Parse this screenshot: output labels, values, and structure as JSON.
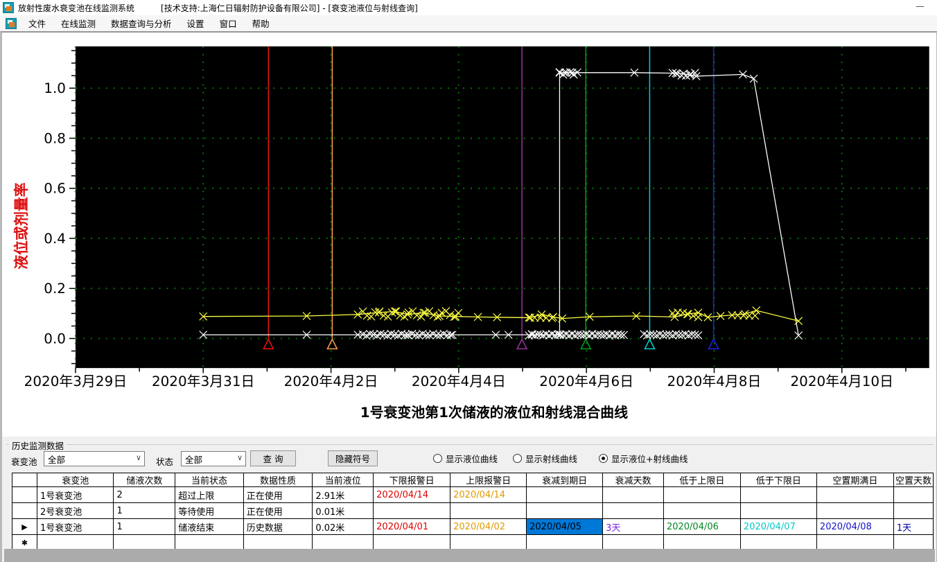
{
  "window": {
    "app_title": "放射性废水衰变池在线监测系统",
    "subtitle": "[技术支持:上海仁日辐射防护设备有限公司] - [衰变池液位与射线查询]",
    "minimize_glyph": "—"
  },
  "menu": {
    "items": [
      "文件",
      "在线监测",
      "数据查询与分析",
      "设置",
      "窗口",
      "帮助"
    ]
  },
  "chart_data": {
    "type": "line",
    "title": "1号衰变池第1次储液的液位和射线混合曲线",
    "xlabel": "",
    "ylabel": "液位或剂量率",
    "background": "#000000",
    "grid_color": "#007a00",
    "grid": true,
    "x_tick_labels": [
      "2020年3月29日",
      "2020年3月31日",
      "2020年4月2日",
      "2020年4月4日",
      "2020年4月6日",
      "2020年4月8日",
      "2020年4月10日"
    ],
    "x_tick_days": [
      0,
      2,
      4,
      6,
      8,
      10,
      12
    ],
    "xlim_days": [
      0,
      13.37
    ],
    "y_ticks": [
      0,
      0.2,
      0.4,
      0.6,
      0.8,
      1.0
    ],
    "y_tick_labels": [
      "0.0",
      "0.2",
      "0.4",
      "0.6",
      "0.8",
      "1.0"
    ],
    "ylim": [
      -0.12,
      1.17
    ],
    "series": [
      {
        "name": "white-curve",
        "color": "#ffffff",
        "marker": "x",
        "points": [
          [
            2.0,
            0.015
          ],
          [
            3.62,
            0.015
          ],
          [
            4.42,
            0.015
          ],
          [
            5.2,
            0.015
          ],
          [
            5.9,
            0.015
          ],
          [
            6.58,
            0.015
          ],
          [
            6.78,
            0.015
          ],
          [
            7.15,
            0.015
          ],
          [
            7.58,
            0.015
          ],
          [
            7.58,
            1.062
          ],
          [
            7.66,
            1.062
          ],
          [
            7.78,
            1.062
          ],
          [
            8.75,
            1.062
          ],
          [
            9.4,
            1.06
          ],
          [
            9.52,
            1.058
          ],
          [
            9.62,
            1.052
          ],
          [
            9.72,
            1.048
          ],
          [
            10.45,
            1.055
          ],
          [
            10.62,
            1.038
          ],
          [
            11.32,
            0.012
          ]
        ]
      },
      {
        "name": "yellow-curve",
        "color": "#ffff44",
        "marker": "x",
        "points": [
          [
            2.0,
            0.088
          ],
          [
            3.62,
            0.09
          ],
          [
            4.42,
            0.096
          ],
          [
            4.75,
            0.104
          ],
          [
            5.0,
            0.108
          ],
          [
            5.2,
            0.096
          ],
          [
            5.45,
            0.103
          ],
          [
            5.7,
            0.09
          ],
          [
            5.95,
            0.088
          ],
          [
            6.3,
            0.086
          ],
          [
            6.6,
            0.085
          ],
          [
            7.12,
            0.083
          ],
          [
            7.3,
            0.096
          ],
          [
            7.48,
            0.086
          ],
          [
            7.62,
            0.08
          ],
          [
            8.05,
            0.087
          ],
          [
            8.78,
            0.09
          ],
          [
            9.38,
            0.086
          ],
          [
            9.58,
            0.098
          ],
          [
            9.75,
            0.103
          ],
          [
            9.9,
            0.085
          ],
          [
            10.1,
            0.09
          ],
          [
            10.48,
            0.098
          ],
          [
            10.66,
            0.112
          ],
          [
            11.32,
            0.07
          ]
        ]
      }
    ],
    "marker_clusters": [
      {
        "series": 0,
        "from": 4.5,
        "to": 5.92,
        "step": 0.055,
        "value": 0.015,
        "jitter": 0.004
      },
      {
        "series": 0,
        "from": 7.1,
        "to": 8.62,
        "step": 0.045,
        "value": 0.015,
        "jitter": 0.003
      },
      {
        "series": 0,
        "from": 8.9,
        "to": 9.75,
        "step": 0.05,
        "value": 0.015,
        "jitter": 0.003
      },
      {
        "series": 0,
        "from": 7.58,
        "to": 7.9,
        "step": 0.055,
        "value": 1.06,
        "jitter": 0.006
      },
      {
        "series": 0,
        "from": 9.35,
        "to": 9.75,
        "step": 0.07,
        "value": 1.055,
        "jitter": 0.006
      },
      {
        "series": 1,
        "from": 4.5,
        "to": 6.0,
        "step": 0.065,
        "value": 0.098,
        "jitter": 0.012
      },
      {
        "series": 1,
        "from": 7.1,
        "to": 7.5,
        "step": 0.09,
        "value": 0.09,
        "jitter": 0.008
      },
      {
        "series": 1,
        "from": 9.35,
        "to": 9.82,
        "step": 0.08,
        "value": 0.094,
        "jitter": 0.01
      },
      {
        "series": 1,
        "from": 10.28,
        "to": 10.72,
        "step": 0.09,
        "value": 0.1,
        "jitter": 0.009
      }
    ],
    "event_lines": [
      {
        "color": "#ee1111",
        "day": 3.02
      },
      {
        "color": "#ffa04d",
        "day": 4.02
      },
      {
        "color": "#993399",
        "day": 6.99
      },
      {
        "color": "#00a020",
        "day": 7.99
      },
      {
        "color": "#00d5d5",
        "day": 8.99
      },
      {
        "color": "#2222ee",
        "day": 9.99
      }
    ]
  },
  "panel": {
    "group_title": "历史监测数据",
    "pool_label": "衰变池",
    "pool_value": "全部",
    "status_label": "状态",
    "status_value": "全部",
    "query_button": "查 询",
    "hide_button": "隐藏符号",
    "radios": [
      {
        "label": "显示液位曲线",
        "selected": false
      },
      {
        "label": "显示射线曲线",
        "selected": false
      },
      {
        "label": "显示液位+射线曲线",
        "selected": true
      }
    ]
  },
  "table": {
    "headers": [
      "",
      "衰变池",
      "储液次数",
      "当前状态",
      "数据性质",
      "当前液位",
      "下限报警日",
      "上限报警日",
      "衰减到期日",
      "衰减天数",
      "低于上限日",
      "低于下限日",
      "空置期满日",
      "空置天数"
    ],
    "rows": [
      {
        "selector": "",
        "cells": [
          "1号衰变池",
          "2",
          "超过上限",
          "正在使用",
          "2.91米",
          "2020/04/14",
          "2020/04/14",
          "",
          "",
          "",
          "",
          "",
          ""
        ]
      },
      {
        "selector": "",
        "cells": [
          "2号衰变池",
          "1",
          "等待使用",
          "正在使用",
          "0.01米",
          "",
          "",
          "",
          "",
          "",
          "",
          "",
          ""
        ]
      },
      {
        "selector": "▶",
        "cells": [
          "1号衰变池",
          "1",
          "储液结束",
          "历史数据",
          "0.02米",
          "2020/04/01",
          "2020/04/02",
          "2020/04/05",
          "3天",
          "2020/04/06",
          "2020/04/07",
          "2020/04/08",
          "1天"
        ]
      },
      {
        "selector": "✱",
        "cells": [
          "",
          "",
          "",
          "",
          "",
          "",
          "",
          "",
          "",
          "",
          "",
          "",
          ""
        ]
      }
    ],
    "selected_cell": {
      "row": 2,
      "col": 7
    }
  }
}
